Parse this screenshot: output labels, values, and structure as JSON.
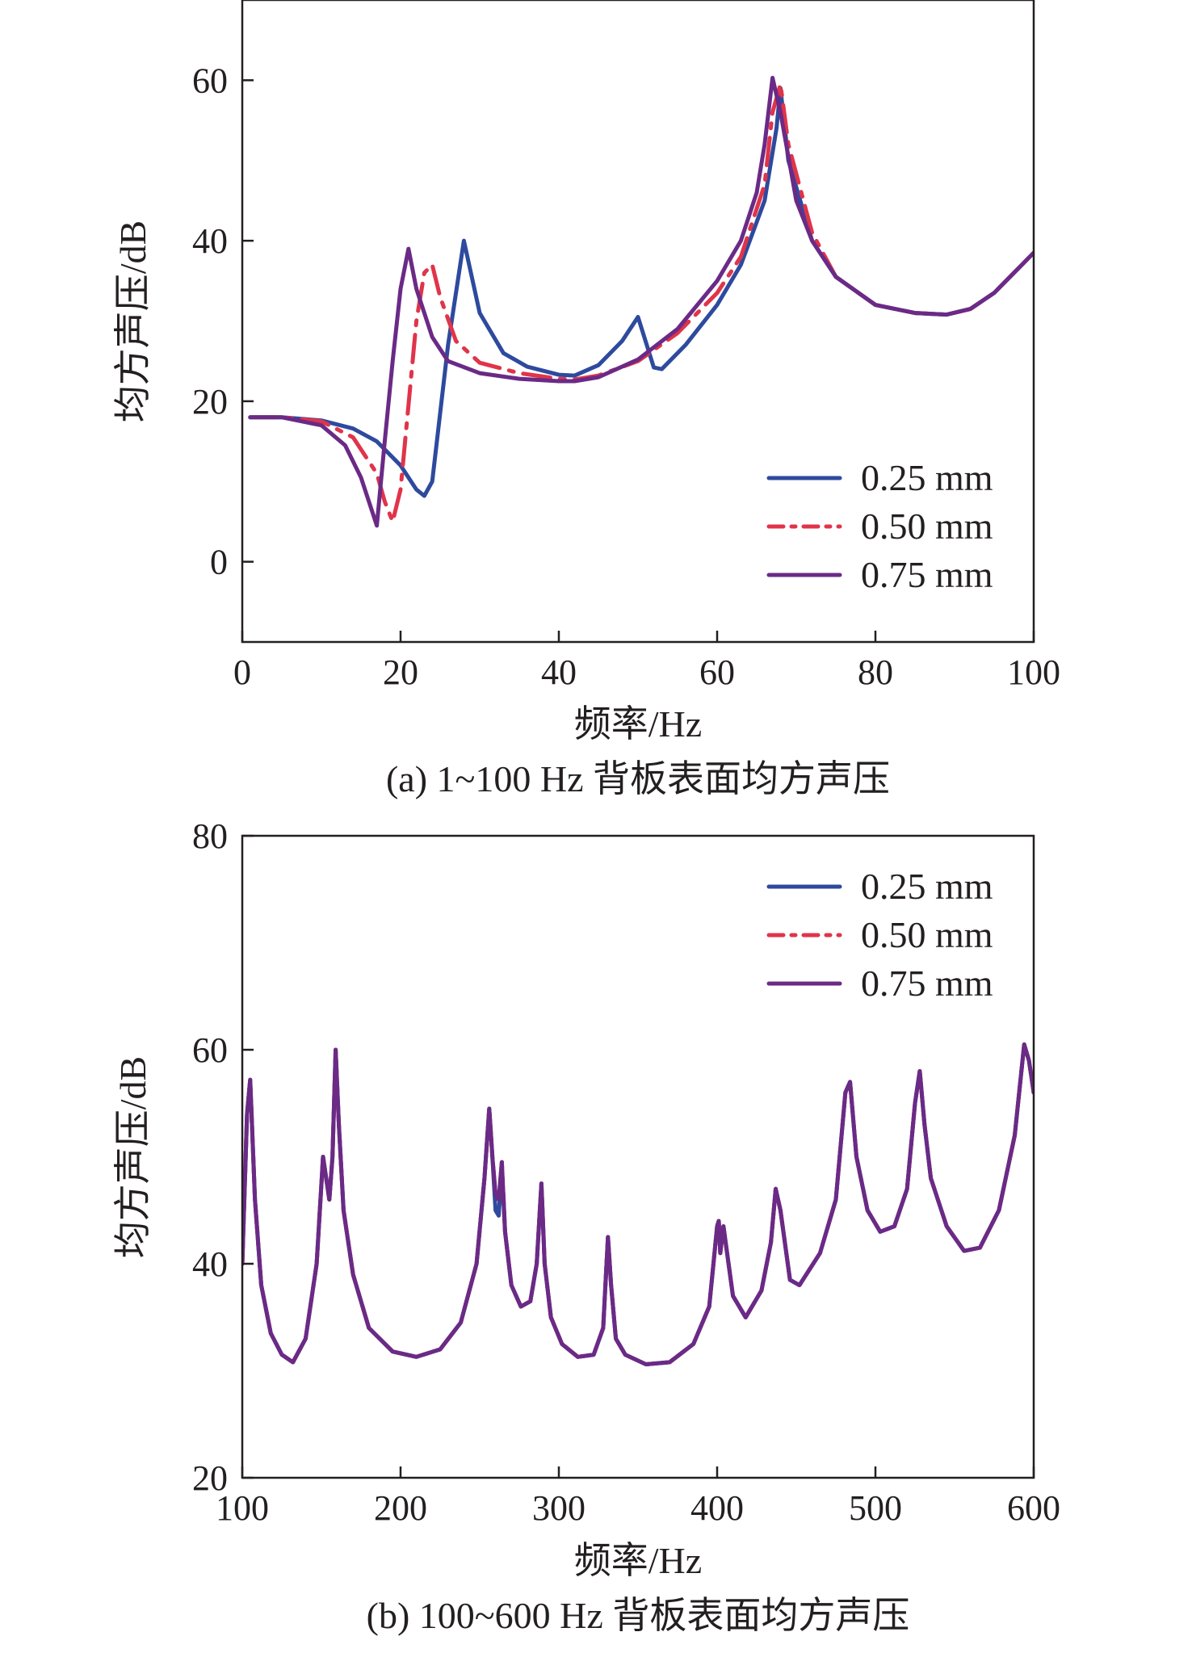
{
  "figure": {
    "charts": [
      {
        "caption": "(a) 1~100 Hz 背板表面均方声压",
        "xlabel": "频率/Hz",
        "ylabel": "均方声压/dB"
      },
      {
        "caption": "(b) 100~600 Hz 背板表面均方声压",
        "xlabel": "频率/Hz",
        "ylabel": "均方声压/dB"
      }
    ]
  },
  "colors": {
    "series_0_25": "#2e4a9e",
    "series_0_50": "#e0344a",
    "series_0_75": "#6a2a86",
    "axis": "#231f20"
  },
  "chart_data": [
    {
      "type": "line",
      "title": "",
      "caption": "(a) 1~100 Hz 背板表面均方声压",
      "xlabel": "频率/Hz",
      "ylabel": "均方声压/dB",
      "xlim": [
        0,
        100
      ],
      "ylim": [
        -10,
        70
      ],
      "xticks": [
        0,
        20,
        40,
        60,
        80,
        100
      ],
      "yticks": [
        0,
        20,
        40,
        60
      ],
      "grid": false,
      "legend_position": "bottom-right",
      "series": [
        {
          "name": "0.25 mm",
          "style": "solid",
          "color": "#2e4a9e",
          "x": [
            1,
            5,
            10,
            14,
            17,
            20,
            22,
            23,
            24,
            26,
            28,
            30,
            33,
            36,
            40,
            42,
            45,
            48,
            50,
            52,
            53,
            56,
            60,
            63,
            66,
            67.5,
            68,
            69,
            72,
            75,
            80,
            85,
            89,
            92,
            95,
            100
          ],
          "y": [
            18,
            18,
            17.6,
            16.6,
            15,
            12,
            9,
            8.2,
            10,
            27,
            40,
            31,
            26,
            24.3,
            23.3,
            23.2,
            24.5,
            27.5,
            30.5,
            24.2,
            24,
            27,
            32,
            37,
            45,
            54,
            59,
            50,
            40,
            35.5,
            32,
            31,
            30.8,
            31.5,
            33.5,
            38.5
          ]
        },
        {
          "name": "0.50 mm",
          "style": "dash-dot",
          "color": "#e0344a",
          "x": [
            1,
            5,
            10,
            14,
            17,
            18,
            19,
            20,
            22,
            23,
            24,
            25,
            27,
            30,
            35,
            40,
            42,
            45,
            50,
            55,
            60,
            63,
            66,
            67,
            68,
            69,
            72,
            75,
            80,
            85,
            89,
            92,
            95,
            100
          ],
          "y": [
            18,
            18,
            17.5,
            15.5,
            11,
            7.5,
            5,
            9,
            30,
            36,
            37,
            33,
            27.5,
            24.8,
            23.5,
            22.8,
            22.7,
            23.2,
            25,
            28.5,
            33.5,
            38,
            47,
            56,
            59.5,
            52,
            41,
            35.5,
            32,
            31,
            30.8,
            31.5,
            33.5,
            38.5
          ]
        },
        {
          "name": "0.75 mm",
          "style": "solid",
          "color": "#6a2a86",
          "x": [
            1,
            5,
            10,
            13,
            15,
            16,
            17,
            18,
            19,
            20,
            21,
            22,
            24,
            26,
            30,
            35,
            40,
            42,
            45,
            50,
            55,
            60,
            63,
            65,
            66,
            67,
            68,
            70,
            72,
            75,
            80,
            85,
            89,
            92,
            95,
            100
          ],
          "y": [
            18,
            18,
            17,
            14.5,
            10.5,
            7.5,
            4.5,
            15,
            25,
            34,
            39,
            34,
            28,
            25,
            23.5,
            22.8,
            22.5,
            22.5,
            23,
            25.2,
            29,
            35,
            40,
            46,
            52,
            60.3,
            56,
            45,
            40,
            35.5,
            32,
            31,
            30.8,
            31.5,
            33.5,
            38.5
          ]
        }
      ]
    },
    {
      "type": "line",
      "title": "",
      "caption": "(b) 100~600 Hz 背板表面均方声压",
      "xlabel": "频率/Hz",
      "ylabel": "均方声压/dB",
      "xlim": [
        100,
        600
      ],
      "ylim": [
        20,
        80
      ],
      "xticks": [
        100,
        200,
        300,
        400,
        500,
        600
      ],
      "yticks": [
        20,
        40,
        60,
        80
      ],
      "grid": false,
      "legend_position": "top-right",
      "series": [
        {
          "name": "0.25 mm",
          "style": "solid",
          "color": "#2e4a9e",
          "x": [
            100,
            103,
            105,
            108,
            112,
            118,
            125,
            132,
            140,
            147,
            151,
            153,
            155,
            157,
            159,
            161,
            164,
            170,
            180,
            195,
            210,
            225,
            238,
            248,
            253,
            256,
            258,
            260,
            262,
            264,
            266,
            270,
            276,
            282,
            286,
            289,
            291,
            295,
            302,
            312,
            322,
            328,
            331,
            333,
            336,
            342,
            355,
            370,
            385,
            395,
            400,
            401,
            402,
            404,
            410,
            418,
            428,
            434,
            437,
            440,
            446,
            452,
            465,
            475,
            481,
            484,
            488,
            495,
            503,
            512,
            520,
            525,
            528,
            531,
            535,
            545,
            556,
            566,
            578,
            588,
            594,
            597,
            600
          ],
          "y": [
            40,
            54,
            57.2,
            46,
            38,
            33.5,
            31.5,
            30.8,
            33,
            40,
            50,
            48,
            46,
            50,
            60,
            53,
            45,
            39,
            34,
            31.8,
            31.3,
            32,
            34.5,
            40,
            48,
            54.5,
            50,
            45,
            44.5,
            49,
            43,
            38,
            36,
            36.5,
            40,
            47.5,
            40,
            35,
            32.5,
            31.3,
            31.5,
            34,
            42.5,
            38,
            33,
            31.5,
            30.6,
            30.8,
            32.5,
            36,
            43.5,
            44,
            41,
            43.5,
            37,
            35,
            37.5,
            42,
            47,
            45,
            38.5,
            38,
            41,
            46,
            56,
            57,
            50,
            45,
            43,
            43.5,
            47,
            55,
            58,
            53,
            48,
            43.5,
            41.2,
            41.5,
            45,
            52,
            60.5,
            59,
            56
          ]
        },
        {
          "name": "0.50 mm",
          "style": "dash-dot",
          "color": "#e0344a",
          "x": [
            100,
            103,
            105,
            108,
            112,
            118,
            125,
            132,
            140,
            147,
            151,
            153,
            155,
            157,
            159,
            161,
            164,
            170,
            180,
            195,
            210,
            225,
            238,
            248,
            253,
            256,
            258,
            260,
            262,
            264,
            266,
            270,
            276,
            282,
            286,
            289,
            291,
            295,
            302,
            312,
            322,
            328,
            331,
            333,
            336,
            342,
            355,
            370,
            385,
            395,
            400,
            401,
            402,
            404,
            410,
            418,
            428,
            434,
            437,
            440,
            446,
            452,
            465,
            475,
            481,
            484,
            488,
            495,
            503,
            512,
            520,
            525,
            528,
            531,
            535,
            545,
            556,
            566,
            578,
            588,
            594,
            597,
            600
          ],
          "y": [
            40,
            54,
            57.2,
            46,
            38,
            33.5,
            31.5,
            30.8,
            33,
            40,
            50,
            48,
            46,
            50,
            60,
            53,
            45,
            39,
            34,
            31.8,
            31.3,
            32,
            34.5,
            40,
            48,
            54.5,
            50,
            46.5,
            46,
            49.5,
            43,
            38,
            36,
            36.5,
            40,
            47.5,
            40,
            35,
            32.5,
            31.3,
            31.5,
            34,
            42.5,
            38,
            33,
            31.5,
            30.6,
            30.8,
            32.5,
            36,
            43.5,
            44,
            41,
            43.5,
            37,
            35,
            37.5,
            42,
            47,
            45,
            38.5,
            38,
            41,
            46,
            56,
            57,
            50,
            45,
            43,
            43.5,
            47,
            55,
            58,
            53,
            48,
            43.5,
            41.2,
            41.5,
            45,
            52,
            60.5,
            59,
            56
          ]
        },
        {
          "name": "0.75 mm",
          "style": "solid",
          "color": "#6a2a86",
          "x": [
            100,
            103,
            105,
            108,
            112,
            118,
            125,
            132,
            140,
            147,
            151,
            153,
            155,
            157,
            159,
            161,
            164,
            170,
            180,
            195,
            210,
            225,
            238,
            248,
            253,
            256,
            258,
            260,
            262,
            264,
            266,
            270,
            276,
            282,
            286,
            289,
            291,
            295,
            302,
            312,
            322,
            328,
            331,
            333,
            336,
            342,
            355,
            370,
            385,
            395,
            400,
            401,
            402,
            404,
            410,
            418,
            428,
            434,
            437,
            440,
            446,
            452,
            465,
            475,
            481,
            484,
            488,
            495,
            503,
            512,
            520,
            525,
            528,
            531,
            535,
            545,
            556,
            566,
            578,
            588,
            594,
            597,
            600
          ],
          "y": [
            40,
            54,
            57.2,
            46,
            38,
            33.5,
            31.5,
            30.8,
            33,
            40,
            50,
            48,
            46,
            50,
            60,
            53,
            45,
            39,
            34,
            31.8,
            31.3,
            32,
            34.5,
            40,
            48,
            54.5,
            50,
            46.5,
            46,
            49.5,
            43,
            38,
            36,
            36.5,
            40,
            47.5,
            40,
            35,
            32.5,
            31.3,
            31.5,
            34,
            42.5,
            38,
            33,
            31.5,
            30.6,
            30.8,
            32.5,
            36,
            43.5,
            44,
            41,
            43.5,
            37,
            35,
            37.5,
            42,
            47,
            45,
            38.5,
            38,
            41,
            46,
            56,
            57,
            50,
            45,
            43,
            43.5,
            47,
            55,
            58,
            53,
            48,
            43.5,
            41.2,
            41.5,
            45,
            52,
            60.5,
            59,
            56
          ]
        }
      ]
    }
  ]
}
